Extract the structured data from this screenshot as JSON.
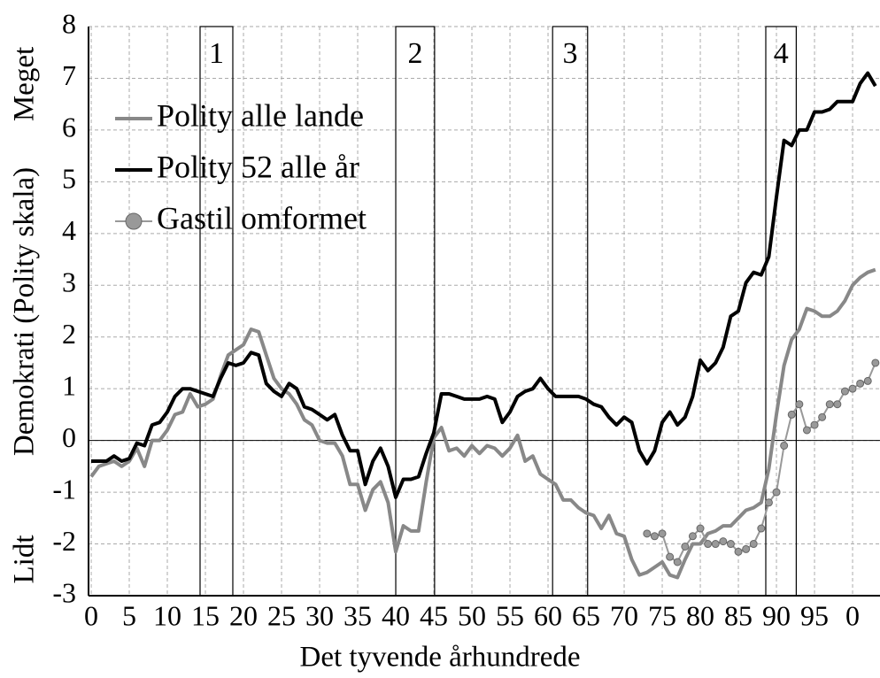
{
  "chart_data": {
    "type": "line",
    "xlabel": "Det tyvende århundrede",
    "ylabel": "Demokrati (Polity skala)",
    "ylabel_top": "Meget",
    "ylabel_bottom": "Lidt",
    "xlim": [
      -0.35,
      103.6
    ],
    "ylim": [
      -3,
      8
    ],
    "xticks": [
      0,
      5,
      10,
      15,
      20,
      25,
      30,
      35,
      40,
      45,
      50,
      55,
      60,
      65,
      70,
      75,
      80,
      85,
      90,
      95,
      {
        "value": 100,
        "label": "0"
      }
    ],
    "yticks": [
      -3,
      -2,
      -1,
      0,
      1,
      2,
      3,
      4,
      5,
      6,
      7,
      8
    ],
    "grid": true,
    "legend": "upper left",
    "periods": [
      {
        "label": "1",
        "start": 14.3,
        "end": 18.6
      },
      {
        "label": "2",
        "start": 40,
        "end": 45.1
      },
      {
        "label": "3",
        "start": 60.6,
        "end": 65.2
      },
      {
        "label": "4",
        "start": 88.6,
        "end": 92.6
      }
    ],
    "x": [
      0,
      1,
      2,
      3,
      4,
      5,
      6,
      7,
      8,
      9,
      10,
      11,
      12,
      13,
      14,
      15,
      16,
      17,
      18,
      19,
      20,
      21,
      22,
      23,
      24,
      25,
      26,
      27,
      28,
      29,
      30,
      31,
      32,
      33,
      34,
      35,
      36,
      37,
      38,
      39,
      40,
      41,
      42,
      43,
      44,
      45,
      46,
      47,
      48,
      49,
      50,
      51,
      52,
      53,
      54,
      55,
      56,
      57,
      58,
      59,
      60,
      61,
      62,
      63,
      64,
      65,
      66,
      67,
      68,
      69,
      70,
      71,
      72,
      73,
      74,
      75,
      76,
      77,
      78,
      79,
      80,
      81,
      82,
      83,
      84,
      85,
      86,
      87,
      88,
      89,
      90,
      91,
      92,
      93,
      94,
      95,
      96,
      97,
      98,
      99,
      100,
      101,
      102,
      103
    ],
    "series": [
      {
        "name": "Polity alle lande",
        "color": "#888888",
        "marker": "none",
        "values": [
          -0.7,
          -0.5,
          -0.45,
          -0.4,
          -0.5,
          -0.4,
          -0.15,
          -0.5,
          0.0,
          0.0,
          0.2,
          0.5,
          0.55,
          0.9,
          0.65,
          0.7,
          0.8,
          1.25,
          1.65,
          1.75,
          1.85,
          2.15,
          2.1,
          1.65,
          1.2,
          1.0,
          0.9,
          0.7,
          0.4,
          0.3,
          0.0,
          -0.05,
          -0.05,
          -0.3,
          -0.85,
          -0.85,
          -1.35,
          -0.95,
          -0.8,
          -1.2,
          -2.15,
          -1.65,
          -1.75,
          -1.75,
          -0.8,
          0.05,
          0.25,
          -0.2,
          -0.15,
          -0.3,
          -0.1,
          -0.25,
          -0.1,
          -0.15,
          -0.3,
          -0.15,
          0.1,
          -0.4,
          -0.3,
          -0.65,
          -0.75,
          -0.85,
          -1.15,
          -1.15,
          -1.3,
          -1.4,
          -1.45,
          -1.7,
          -1.45,
          -1.8,
          -1.85,
          -2.3,
          -2.6,
          -2.55,
          -2.45,
          -2.35,
          -2.6,
          -2.65,
          -2.3,
          -2.0,
          -2.0,
          -1.8,
          -1.75,
          -1.65,
          -1.65,
          -1.5,
          -1.35,
          -1.3,
          -1.2,
          -0.55,
          0.5,
          1.45,
          1.95,
          2.15,
          2.55,
          2.5,
          2.4,
          2.4,
          2.5,
          2.7,
          3.0,
          3.15,
          3.25,
          3.3
        ]
      },
      {
        "name": "Polity 52 alle år",
        "color": "#000000",
        "marker": "none",
        "values": [
          -0.4,
          -0.4,
          -0.4,
          -0.3,
          -0.4,
          -0.35,
          -0.05,
          -0.1,
          0.3,
          0.35,
          0.55,
          0.85,
          1.0,
          1.0,
          0.95,
          0.9,
          0.85,
          1.2,
          1.5,
          1.45,
          1.5,
          1.7,
          1.65,
          1.1,
          0.95,
          0.85,
          1.1,
          1.0,
          0.65,
          0.6,
          0.5,
          0.4,
          0.5,
          0.1,
          -0.2,
          -0.2,
          -0.85,
          -0.4,
          -0.15,
          -0.5,
          -1.1,
          -0.75,
          -0.75,
          -0.7,
          -0.25,
          0.15,
          0.9,
          0.9,
          0.85,
          0.8,
          0.8,
          0.8,
          0.85,
          0.8,
          0.35,
          0.55,
          0.85,
          0.95,
          1.0,
          1.2,
          1.0,
          0.85,
          0.85,
          0.85,
          0.85,
          0.8,
          0.7,
          0.65,
          0.45,
          0.3,
          0.45,
          0.35,
          -0.2,
          -0.45,
          -0.2,
          0.35,
          0.55,
          0.3,
          0.45,
          0.85,
          1.55,
          1.35,
          1.5,
          1.8,
          2.4,
          2.5,
          3.05,
          3.25,
          3.2,
          3.55,
          4.7,
          5.8,
          5.7,
          6.0,
          6.0,
          6.35,
          6.35,
          6.4,
          6.55,
          6.55,
          6.55,
          6.9,
          7.1,
          6.85
        ]
      },
      {
        "name": "Gastil omformet",
        "color": "#999999",
        "marker": "circle",
        "values": [
          null,
          null,
          null,
          null,
          null,
          null,
          null,
          null,
          null,
          null,
          null,
          null,
          null,
          null,
          null,
          null,
          null,
          null,
          null,
          null,
          null,
          null,
          null,
          null,
          null,
          null,
          null,
          null,
          null,
          null,
          null,
          null,
          null,
          null,
          null,
          null,
          null,
          null,
          null,
          null,
          null,
          null,
          null,
          null,
          null,
          null,
          null,
          null,
          null,
          null,
          null,
          null,
          null,
          null,
          null,
          null,
          null,
          null,
          null,
          null,
          null,
          null,
          null,
          null,
          null,
          null,
          null,
          null,
          null,
          null,
          null,
          null,
          null,
          -1.8,
          -1.85,
          -1.8,
          -2.25,
          -2.35,
          -2.05,
          -1.85,
          -1.7,
          -2.0,
          -2.0,
          -1.95,
          -2.0,
          -2.15,
          -2.1,
          -2.0,
          -1.7,
          -1.2,
          -1.0,
          -0.1,
          0.5,
          0.7,
          0.2,
          0.3,
          0.45,
          0.7,
          0.7,
          0.95,
          1.0,
          1.1,
          1.15,
          1.5
        ]
      }
    ]
  }
}
